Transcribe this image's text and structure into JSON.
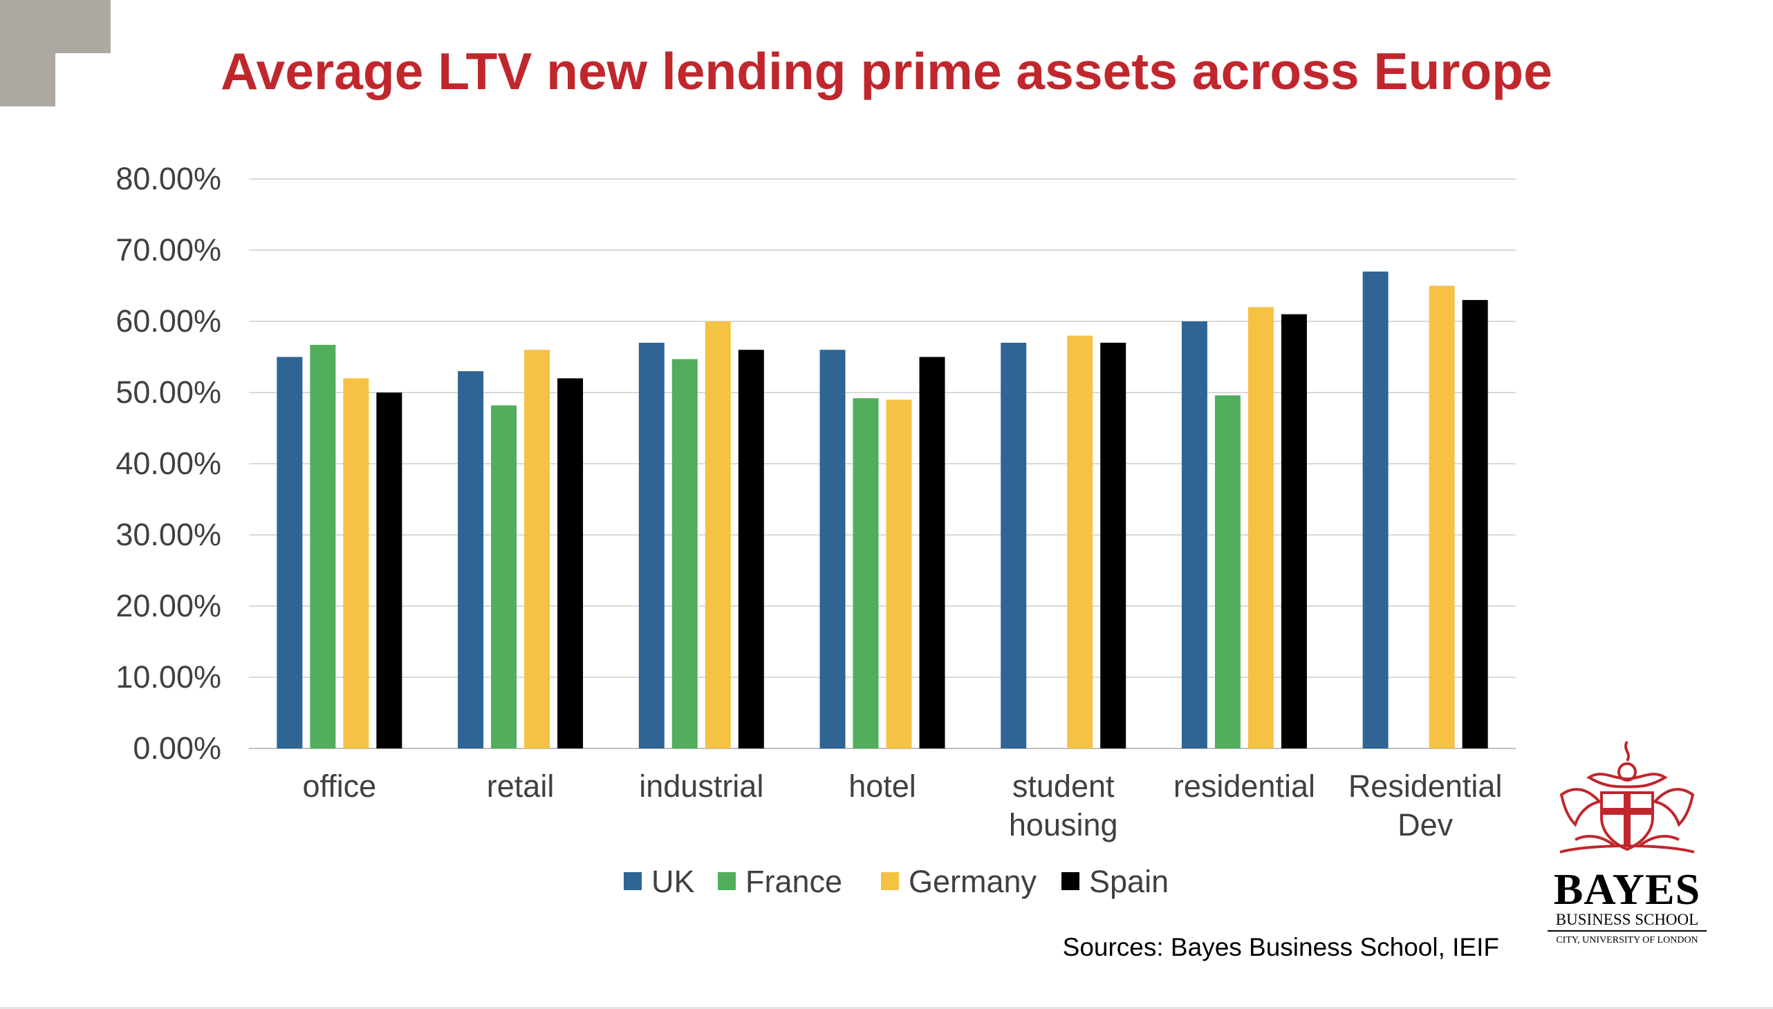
{
  "title": "Average LTV new lending prime assets across Europe",
  "source": "Sources: Bayes Business School, IEIF",
  "logo": {
    "name": "BAYES",
    "subtitle": "BUSINESS SCHOOL",
    "affiliation": "CITY, UNIVERSITY OF LONDON",
    "icon": "coat-of-arms-icon"
  },
  "colors": {
    "title": "#c0272d",
    "UK": "#2e6595",
    "France": "#52ae5c",
    "Germany": "#f5c244",
    "Spain": "#000000",
    "grid": "#d9d9d9",
    "corner": "#aea8a3"
  },
  "chart_data": {
    "type": "bar",
    "title": "Average LTV new lending prime assets across Europe",
    "xlabel": "",
    "ylabel": "",
    "categories": [
      [
        "office"
      ],
      [
        "retail"
      ],
      [
        "industrial"
      ],
      [
        "hotel"
      ],
      [
        "student",
        "housing"
      ],
      [
        "residential"
      ],
      [
        "Residential",
        "Dev"
      ]
    ],
    "series": [
      {
        "name": "UK",
        "color": "#2e6595",
        "values": [
          55,
          53,
          57,
          56,
          57,
          60,
          67
        ]
      },
      {
        "name": "France",
        "color": "#52ae5c",
        "values": [
          56.7,
          48.2,
          54.7,
          49.2,
          null,
          49.6,
          null
        ]
      },
      {
        "name": "Germany",
        "color": "#f5c244",
        "values": [
          52,
          56,
          60,
          49,
          58,
          62,
          65
        ]
      },
      {
        "name": "Spain",
        "color": "#000000",
        "values": [
          50,
          52,
          56,
          55,
          57,
          61,
          63
        ]
      }
    ],
    "ylim": [
      0,
      80
    ],
    "yticks": [
      0,
      10,
      20,
      30,
      40,
      50,
      60,
      70,
      80
    ],
    "ytick_labels": [
      "0.00%",
      "10.00%",
      "20.00%",
      "30.00%",
      "40.00%",
      "50.00%",
      "60.00%",
      "70.00%",
      "80.00%"
    ],
    "grid": true,
    "legend": "bottom"
  }
}
